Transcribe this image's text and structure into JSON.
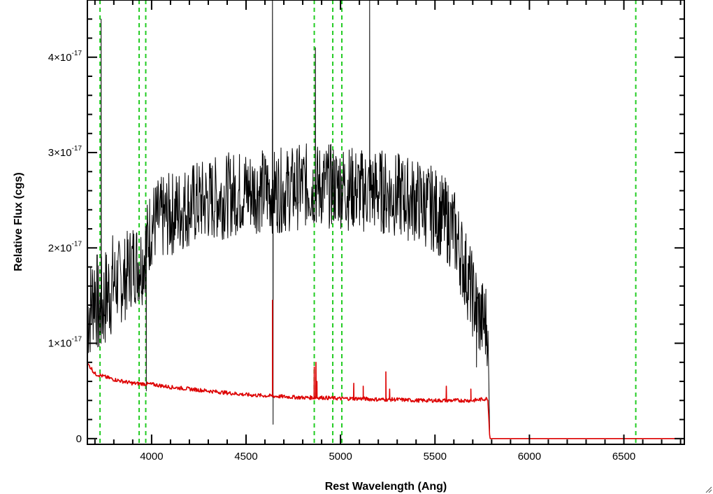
{
  "chart_data": {
    "type": "line",
    "title": "",
    "xlabel": "Rest Wavelength (Ang)",
    "ylabel": "Relative Flux (cgs)",
    "xlim": [
      3660,
      6820
    ],
    "ylim": [
      -0.06,
      4.6
    ],
    "y_unit_multiplier": "1e-17",
    "x_ticks": [
      4000,
      4500,
      5000,
      5500,
      6000,
      6500
    ],
    "x_tick_labels": [
      "4000",
      "4500",
      "5000",
      "5500",
      "6000",
      "6500"
    ],
    "y_ticks": [
      0,
      1,
      2,
      3,
      4
    ],
    "y_tick_labels": [
      {
        "mantissa": "0",
        "exponent": ""
      },
      {
        "mantissa": "1×10",
        "exponent": "-17"
      },
      {
        "mantissa": "2×10",
        "exponent": "-17"
      },
      {
        "mantissa": "3×10",
        "exponent": "-17"
      },
      {
        "mantissa": "4×10",
        "exponent": "-17"
      }
    ],
    "grid": false,
    "legend": "none",
    "reference_lines": {
      "color": "#22cc22",
      "style": "dashed",
      "x": [
        3727,
        3934,
        3969,
        4861,
        4959,
        5007,
        6563
      ]
    },
    "series": [
      {
        "color": "#000000",
        "x": [
          3662,
          3680,
          3700,
          3720,
          3740,
          3760,
          3800,
          3850,
          3900,
          3950,
          4000,
          4100,
          4200,
          4300,
          4400,
          4500,
          4600,
          4700,
          4800,
          4900,
          5000,
          5100,
          5200,
          5300,
          5400,
          5500,
          5600,
          5650,
          5700,
          5740,
          5780,
          5790
        ],
        "y": [
          1.3,
          1.4,
          1.6,
          1.3,
          1.4,
          1.5,
          1.65,
          1.65,
          1.85,
          1.85,
          2.25,
          2.35,
          2.45,
          2.5,
          2.55,
          2.6,
          2.6,
          2.6,
          2.65,
          2.65,
          2.65,
          2.6,
          2.6,
          2.55,
          2.5,
          2.4,
          2.2,
          1.85,
          1.5,
          1.25,
          1.2,
          0.0
        ],
        "spikes": [
          {
            "x": 3733,
            "y": 4.4
          },
          {
            "x": 3972,
            "y": 0.5
          },
          {
            "x": 4640,
            "y": 4.7
          },
          {
            "x": 4643,
            "y": 0.15
          },
          {
            "x": 4867,
            "y": 4.1
          },
          {
            "x": 5154,
            "y": 4.7
          },
          {
            "x": 5720,
            "y": 0.75
          }
        ]
      },
      {
        "color": "#dd0000",
        "x": [
          3662,
          3680,
          3700,
          3750,
          3800,
          3900,
          4000,
          4100,
          4200,
          4300,
          4400,
          4500,
          4600,
          4700,
          4800,
          4900,
          5000,
          5100,
          5200,
          5300,
          5400,
          5500,
          5600,
          5700,
          5780,
          5790,
          6000,
          6500,
          6820
        ],
        "y": [
          0.78,
          0.74,
          0.68,
          0.65,
          0.62,
          0.58,
          0.57,
          0.54,
          0.52,
          0.5,
          0.48,
          0.46,
          0.45,
          0.44,
          0.43,
          0.43,
          0.42,
          0.42,
          0.41,
          0.41,
          0.4,
          0.4,
          0.4,
          0.4,
          0.42,
          0.0,
          0.0,
          0.0,
          0.0
        ],
        "spikes": [
          {
            "x": 4640,
            "y": 1.45
          },
          {
            "x": 4861,
            "y": 0.75
          },
          {
            "x": 4870,
            "y": 0.8
          },
          {
            "x": 4875,
            "y": 0.6
          },
          {
            "x": 5070,
            "y": 0.58
          },
          {
            "x": 5120,
            "y": 0.55
          },
          {
            "x": 5240,
            "y": 0.7
          },
          {
            "x": 5260,
            "y": 0.52
          },
          {
            "x": 5560,
            "y": 0.55
          },
          {
            "x": 5690,
            "y": 0.52
          }
        ]
      }
    ]
  }
}
